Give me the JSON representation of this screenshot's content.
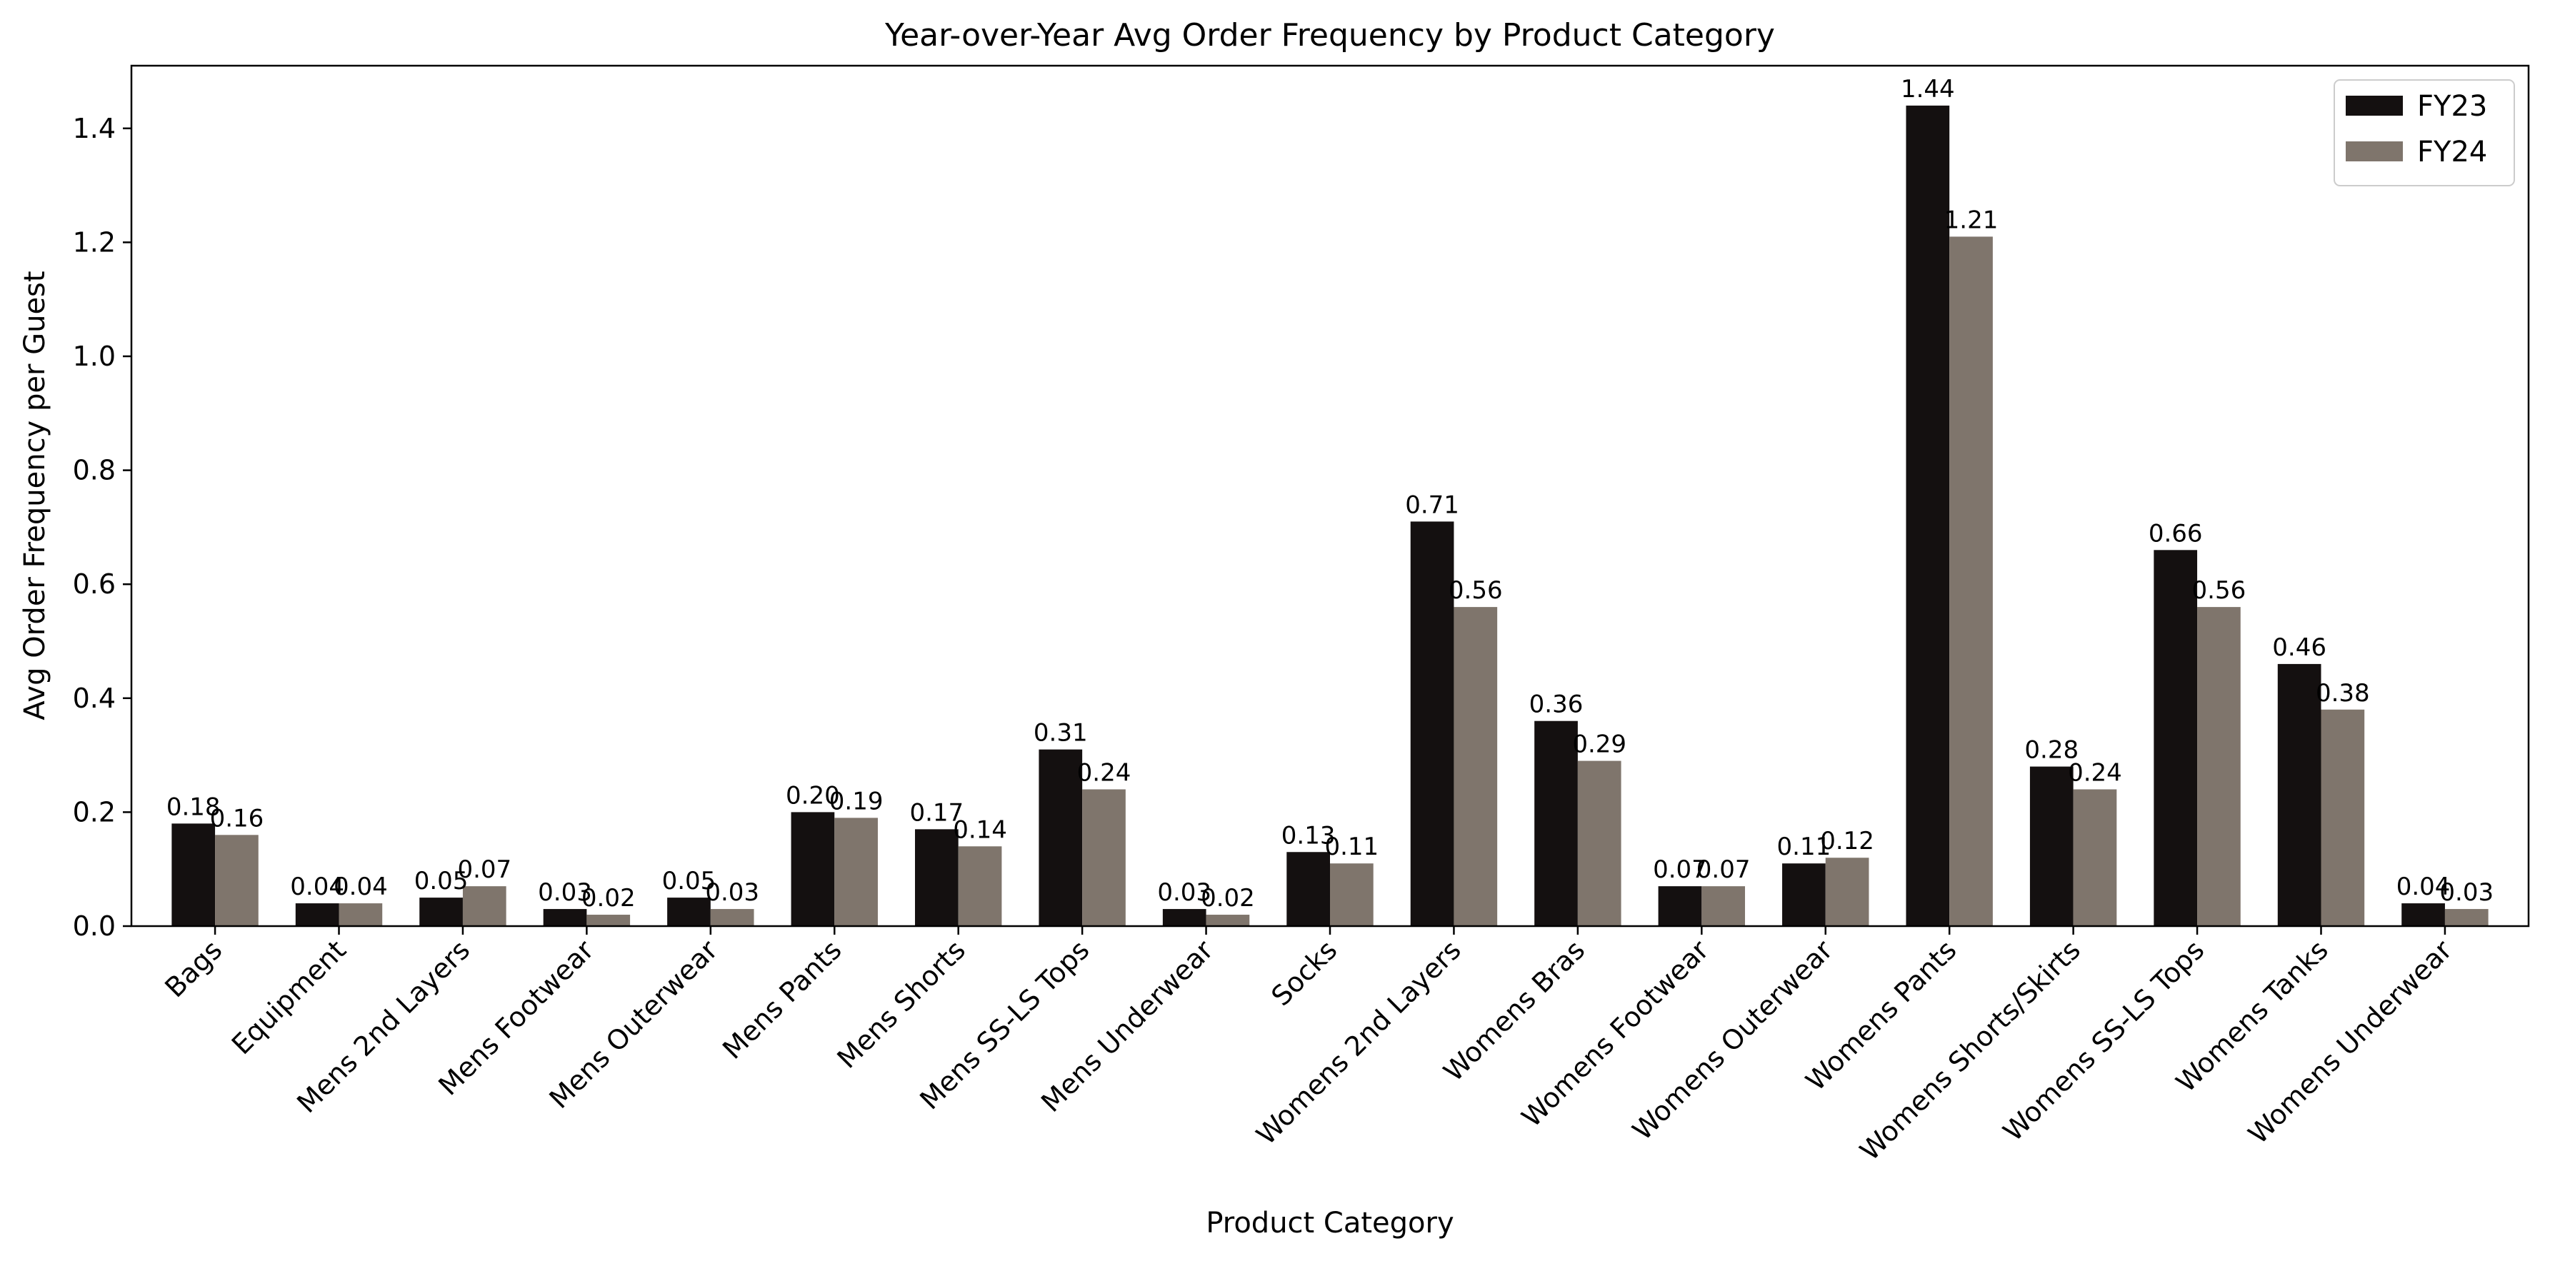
{
  "chart_data": {
    "type": "bar",
    "title": "Year-over-Year Avg Order Frequency by Product Category",
    "xlabel": "Product Category",
    "ylabel": "Avg Order Frequency per Guest",
    "ylim": [
      0,
      1.51
    ],
    "yticks": [
      0.0,
      0.2,
      0.4,
      0.6,
      0.8,
      1.0,
      1.2,
      1.4
    ],
    "ytick_labels": [
      "0.0",
      "0.2",
      "0.4",
      "0.6",
      "0.8",
      "1.0",
      "1.2",
      "1.4"
    ],
    "grid": false,
    "legend_position": "top-right",
    "categories": [
      "Bags",
      "Equipment",
      "Mens 2nd Layers",
      "Mens Footwear",
      "Mens Outerwear",
      "Mens Pants",
      "Mens Shorts",
      "Mens SS-LS Tops",
      "Mens Underwear",
      "Socks",
      "Womens 2nd Layers",
      "Womens Bras",
      "Womens Footwear",
      "Womens Outerwear",
      "Womens Pants",
      "Womens Shorts/Skirts",
      "Womens SS-LS Tops",
      "Womens Tanks",
      "Womens Underwear"
    ],
    "series": [
      {
        "name": "FY23",
        "color": "#141010",
        "values": [
          0.18,
          0.04,
          0.05,
          0.03,
          0.05,
          0.2,
          0.17,
          0.31,
          0.03,
          0.13,
          0.71,
          0.36,
          0.07,
          0.11,
          1.44,
          0.28,
          0.66,
          0.46,
          0.04
        ],
        "labels": [
          "0.18",
          "0.04",
          "0.05",
          "0.03",
          "0.05",
          "0.20",
          "0.17",
          "0.31",
          "0.03",
          "0.13",
          "0.71",
          "0.36",
          "0.07",
          "0.11",
          "1.44",
          "0.28",
          "0.66",
          "0.46",
          "0.04"
        ]
      },
      {
        "name": "FY24",
        "color": "#7f756c",
        "values": [
          0.16,
          0.04,
          0.07,
          0.02,
          0.03,
          0.19,
          0.14,
          0.24,
          0.02,
          0.11,
          0.56,
          0.29,
          0.07,
          0.12,
          1.21,
          0.24,
          0.56,
          0.38,
          0.03
        ],
        "labels": [
          "0.16",
          "0.04",
          "0.07",
          "0.02",
          "0.03",
          "0.19",
          "0.14",
          "0.24",
          "0.02",
          "0.11",
          "0.56",
          "0.29",
          "0.07",
          "0.12",
          "1.21",
          "0.24",
          "0.56",
          "0.38",
          "0.03"
        ]
      }
    ]
  }
}
